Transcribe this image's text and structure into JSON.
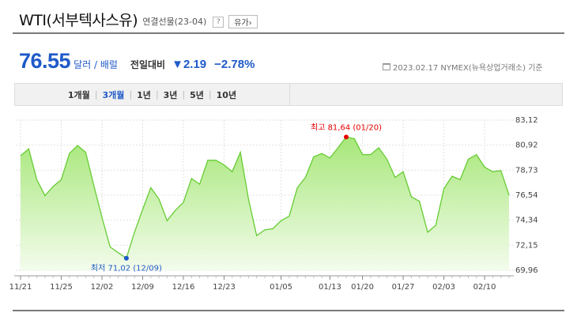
{
  "header": {
    "title": "WTI(서부텍사스유)",
    "subtitle": "연결선물(23-04)",
    "help_label": "?",
    "type_button": "유가›"
  },
  "price": {
    "value": "76.55",
    "unit": "달러 / 배럴",
    "change_label": "전일대비",
    "change_value": "▼2.19",
    "change_pct": "−2.78%",
    "reference": "2023.02.17  NYMEX(뉴욕상업거래소) 기준"
  },
  "periods": [
    "1개월",
    "3개월",
    "1년",
    "3년",
    "5년",
    "10년"
  ],
  "active_period": 1,
  "colors": {
    "line": "#66cc33",
    "fill_top": "#a7e77a",
    "fill_bottom": "#f3fcec",
    "high": "#e60000",
    "low": "#1f5ac8"
  },
  "chart_data": {
    "type": "area",
    "y_ticks": [
      "83,12",
      "80,92",
      "78,73",
      "76,54",
      "74,34",
      "72,15",
      "69,96"
    ],
    "ylim": [
      69.96,
      83.12
    ],
    "x_tick_labels": [
      "11/21",
      "11/25",
      "12/02",
      "12/09",
      "12/16",
      "12/23",
      "01/05",
      "01/13",
      "01/20",
      "01/27",
      "02/03",
      "02/10"
    ],
    "x_tick_index": [
      0,
      5,
      10,
      15,
      20,
      25,
      32,
      38,
      42,
      47,
      52,
      57
    ],
    "values": [
      80.0,
      80.6,
      77.9,
      76.5,
      77.3,
      77.9,
      80.2,
      80.9,
      80.3,
      77.4,
      74.6,
      72.0,
      71.5,
      71.02,
      73.3,
      75.3,
      77.2,
      76.2,
      74.3,
      75.2,
      75.9,
      78.0,
      77.5,
      79.6,
      79.6,
      79.2,
      78.6,
      80.3,
      76.2,
      73.0,
      73.5,
      73.6,
      74.3,
      74.7,
      77.2,
      78.1,
      79.9,
      80.2,
      79.8,
      80.7,
      81.64,
      81.5,
      80.1,
      80.1,
      80.7,
      79.7,
      78.1,
      78.6,
      76.4,
      76.0,
      73.3,
      73.9,
      77.1,
      78.2,
      77.9,
      79.7,
      80.1,
      79.0,
      78.6,
      78.7,
      76.55
    ],
    "high": {
      "index": 40,
      "label": "최고  81,64 (01/20)"
    },
    "low": {
      "index": 13,
      "label": "최저  71,02 (12/09)"
    }
  }
}
